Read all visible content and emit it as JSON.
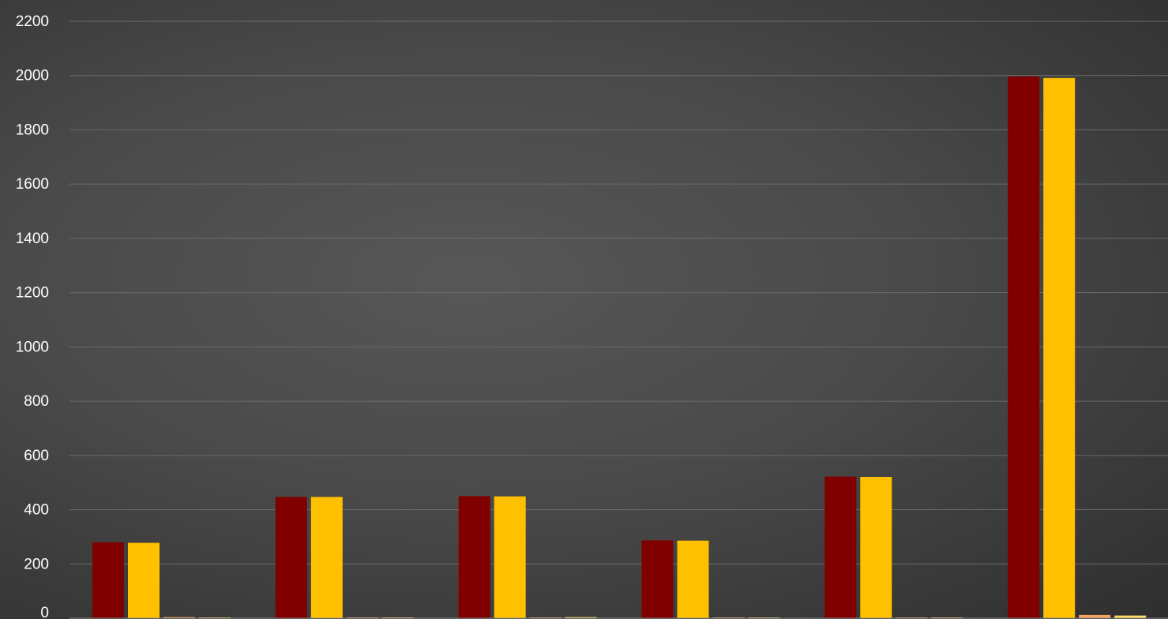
{
  "chart_data": {
    "type": "bar",
    "title": "",
    "xlabel": "",
    "ylabel": "",
    "ylim": [
      0,
      2200
    ],
    "y_ticks": [
      "0",
      "200",
      "400",
      "600",
      "800",
      "1000",
      "1200",
      "1400",
      "1600",
      "1800",
      "2000",
      "2200"
    ],
    "grid": true,
    "legend": "none",
    "categories": [
      "",
      "",
      "",
      "",
      "",
      ""
    ],
    "series": [
      {
        "color": "#800000",
        "values": [
          280,
          447,
          450,
          287,
          522,
          1997
        ]
      },
      {
        "color": "#FFC000",
        "values": [
          278,
          447,
          449,
          286,
          521,
          1991
        ]
      },
      {
        "color": "#F4A460",
        "values": [
          4,
          3,
          2,
          3,
          2,
          12
        ]
      },
      {
        "color": "#FFD966",
        "values": [
          1,
          1,
          4,
          1,
          1,
          10
        ]
      }
    ]
  }
}
